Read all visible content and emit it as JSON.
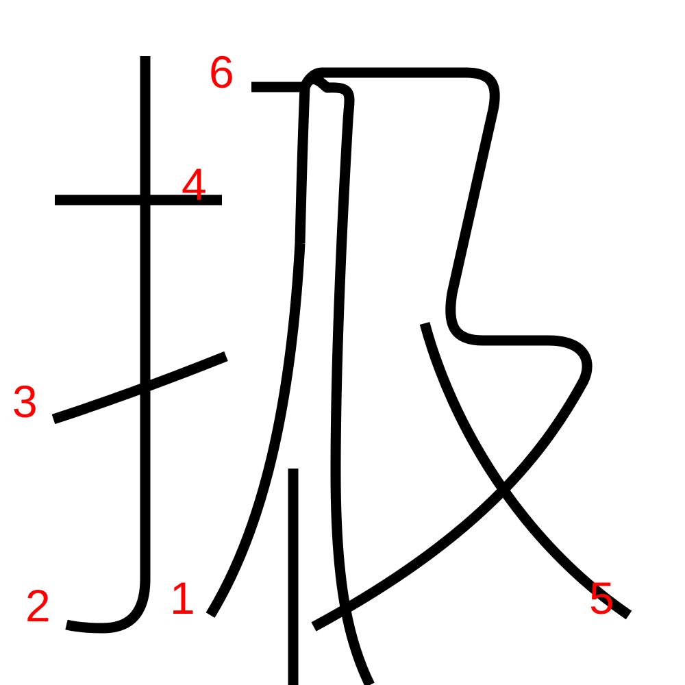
{
  "figure": {
    "background_color": "#ffffff",
    "stroke_color": "#000000",
    "label_color": "#ff0000",
    "stroke_labels": {
      "s1": "1",
      "s2": "2",
      "s3": "3",
      "s4": "4",
      "s5": "5",
      "s6": "6"
    }
  }
}
